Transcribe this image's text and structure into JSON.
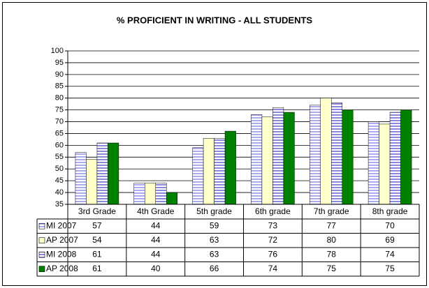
{
  "chart_data": {
    "type": "bar",
    "title": "% PROFICIENT IN WRITING - ALL STUDENTS",
    "categories": [
      "3rd Grade",
      "4th Grade",
      "5th grade",
      "6th grade",
      "7th grade",
      "8th grade"
    ],
    "series": [
      {
        "name": "MI 2007",
        "color": "#aaaaee",
        "fill_style": "striped",
        "values": [
          57,
          44,
          59,
          73,
          77,
          70
        ]
      },
      {
        "name": "AP 2007",
        "color": "#ffffcc",
        "fill_style": "solid",
        "values": [
          54,
          44,
          63,
          72,
          80,
          69
        ]
      },
      {
        "name": "MI 2008",
        "color": "#8888dd",
        "fill_style": "striped",
        "values": [
          61,
          44,
          63,
          76,
          78,
          74
        ]
      },
      {
        "name": "AP 2008",
        "color": "#008000",
        "fill_style": "solid",
        "values": [
          61,
          40,
          66,
          74,
          75,
          75
        ]
      }
    ],
    "ylim": [
      35,
      100
    ],
    "yticks": [
      35,
      40,
      45,
      50,
      55,
      60,
      65,
      70,
      75,
      80,
      85,
      90,
      95,
      100
    ],
    "grid": true,
    "data_table": true
  }
}
